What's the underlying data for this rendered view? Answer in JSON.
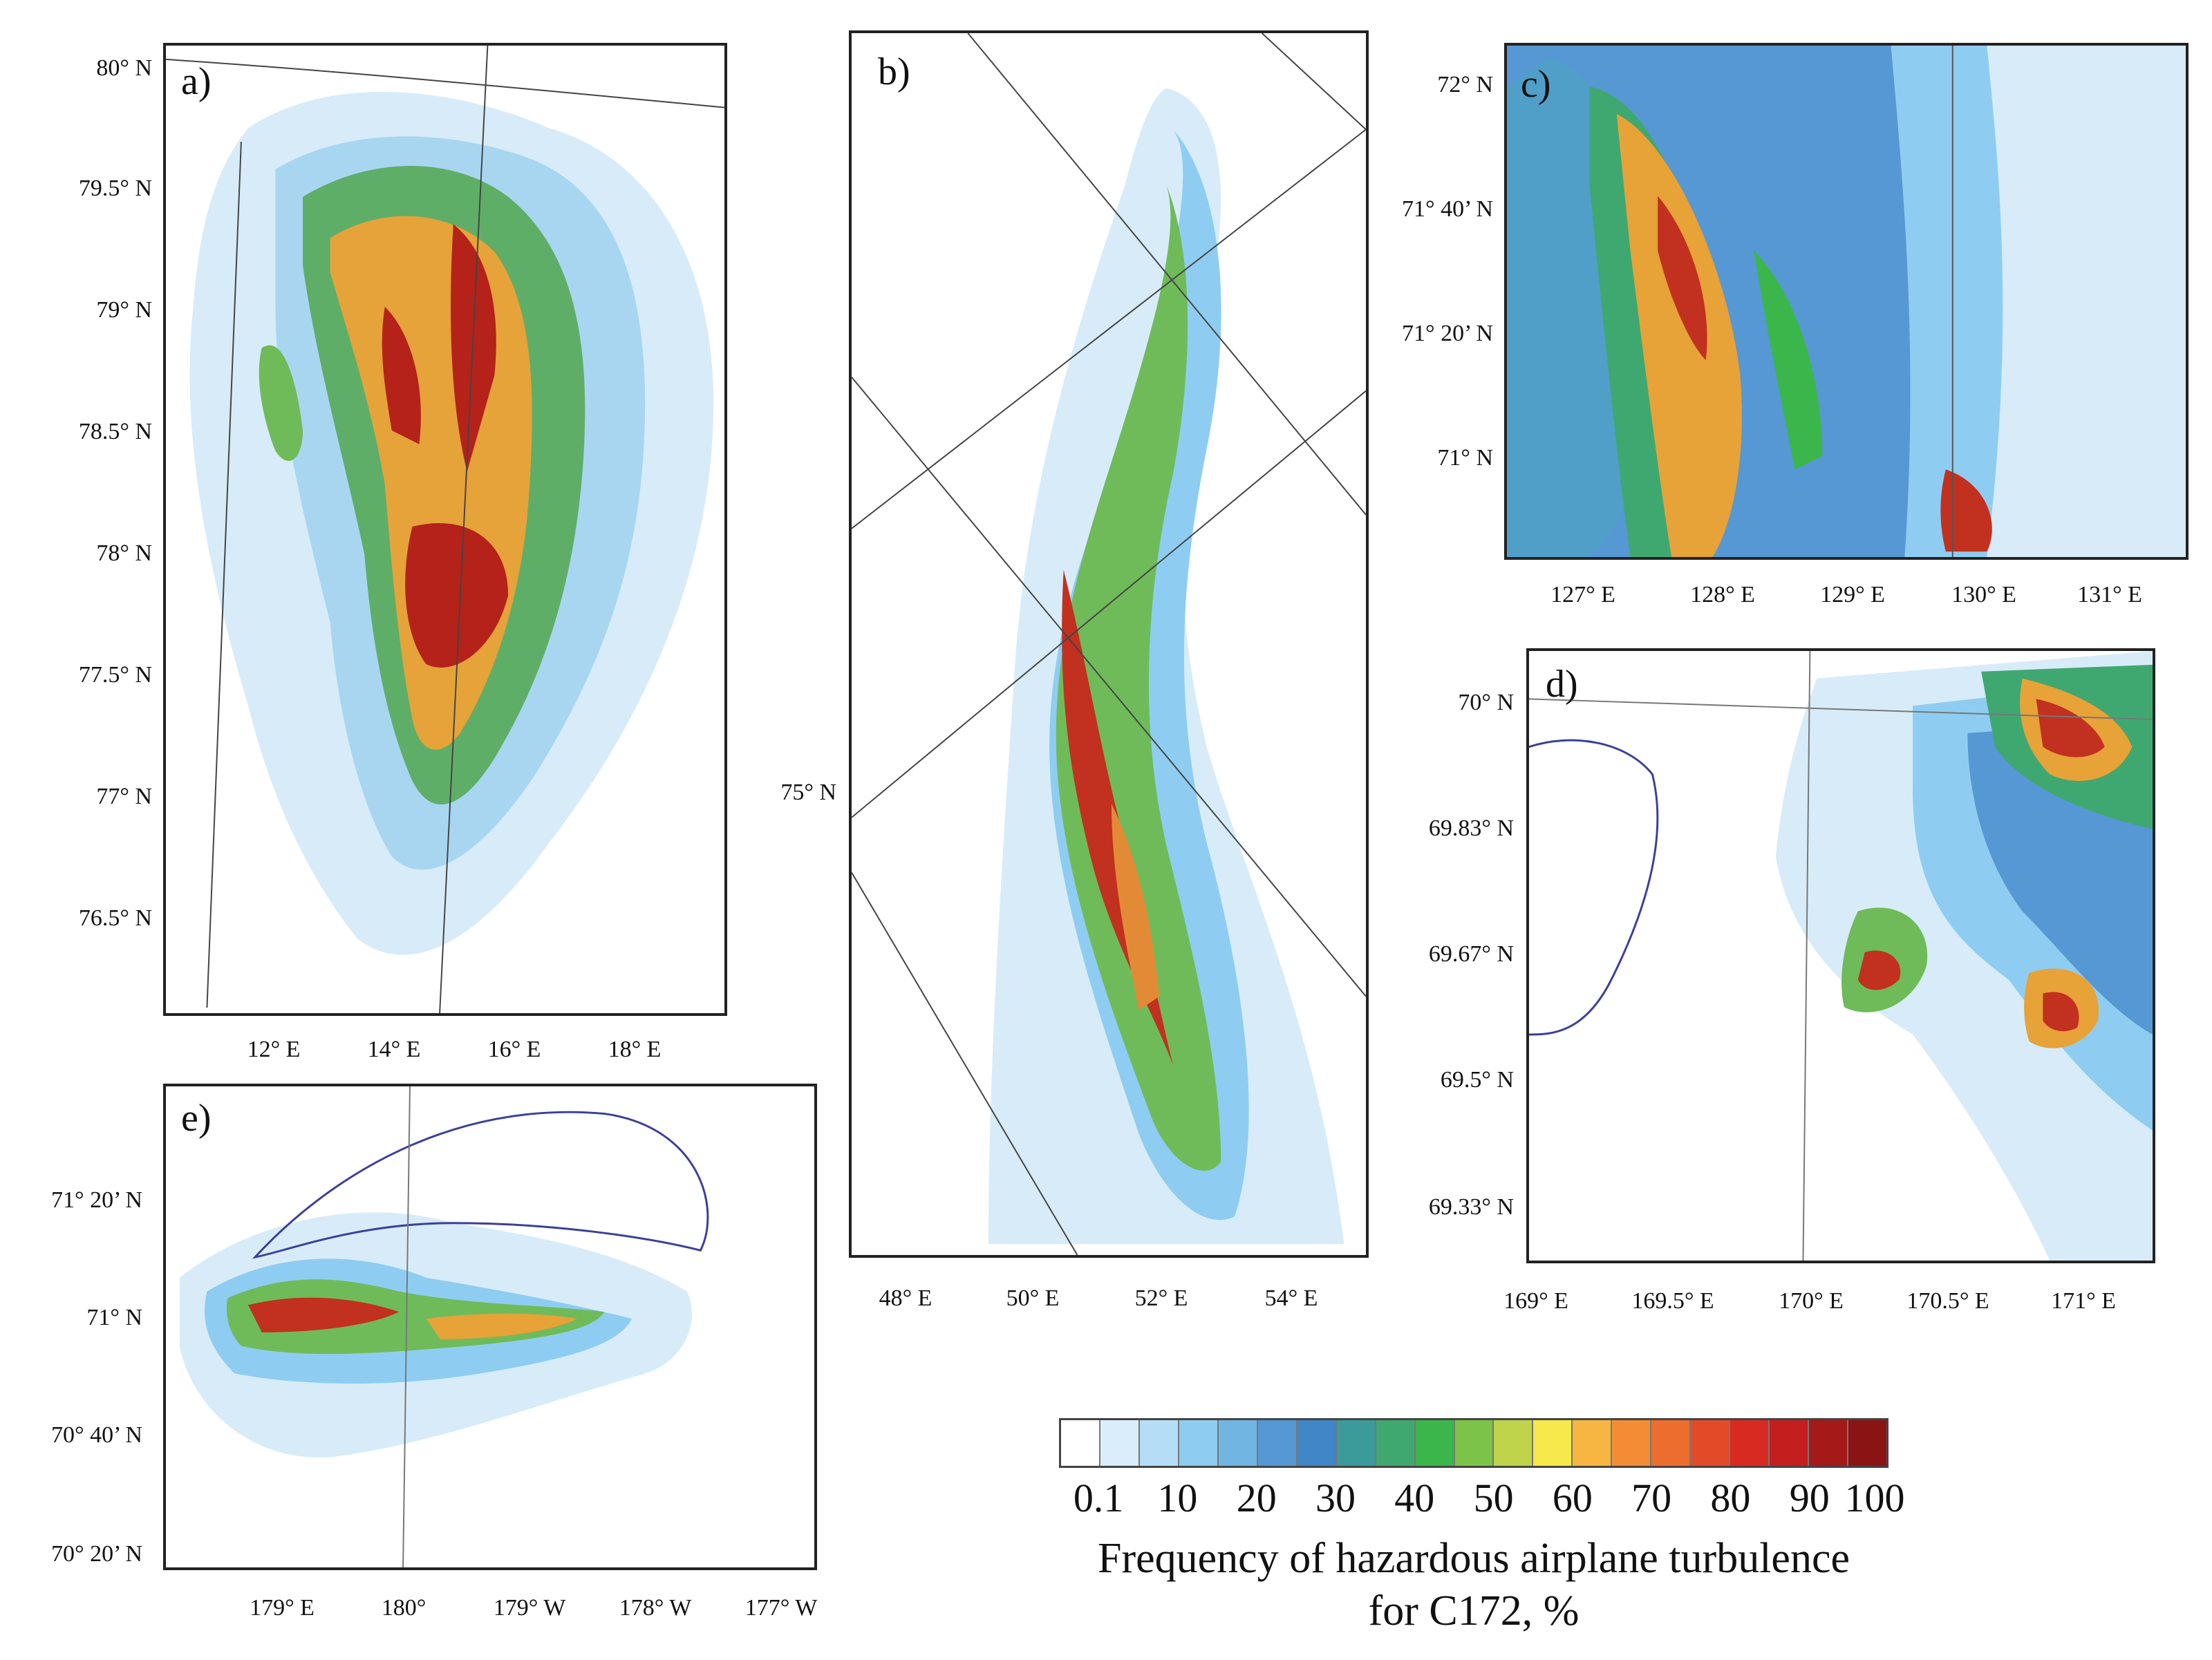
{
  "panels": {
    "a": {
      "label": "a)",
      "lat_labels": [
        "80° N",
        "79.5° N",
        "79° N",
        "78.5° N",
        "78° N",
        "77.5° N",
        "77° N",
        "76.5° N"
      ],
      "lon_labels": [
        "12° E",
        "14° E",
        "16° E",
        "18° E"
      ]
    },
    "b": {
      "label": "b)",
      "lat_labels": [
        "75° N"
      ],
      "lon_labels": [
        "48° E",
        "50° E",
        "52° E",
        "54° E"
      ]
    },
    "c": {
      "label": "c)",
      "lat_labels": [
        "72° N",
        "71° 40’ N",
        "71° 20’ N",
        "71° N"
      ],
      "lon_labels": [
        "127° E",
        "128° E",
        "129° E",
        "130° E",
        "131° E"
      ]
    },
    "d": {
      "label": "d)",
      "lat_labels": [
        "70° N",
        "69.83° N",
        "69.67° N",
        "69.5° N",
        "69.33° N"
      ],
      "lon_labels": [
        "169° E",
        "169.5° E",
        "170° E",
        "170.5° E",
        "171° E"
      ]
    },
    "e": {
      "label": "e)",
      "lat_labels": [
        "71° 20’ N",
        "71° N",
        "70° 40’ N",
        "70° 20’ N"
      ],
      "lon_labels": [
        "179° E",
        "180°",
        "179° W",
        "178° W",
        "177° W"
      ]
    }
  },
  "legend": {
    "colors": [
      "#ffffff",
      "#d9eefa",
      "#b5def6",
      "#8ecdf1",
      "#71b5e3",
      "#5598d4",
      "#3f87c6",
      "#3b9a9a",
      "#3fa871",
      "#3bb64a",
      "#7cc448",
      "#bfd44a",
      "#f7e84b",
      "#f7b641",
      "#f28d36",
      "#ec6d2d",
      "#e34b28",
      "#d92a22",
      "#c41e1e",
      "#a61919",
      "#8a1414"
    ],
    "tick_labels": [
      "0.1",
      "10",
      "20",
      "30",
      "40",
      "50",
      "60",
      "70",
      "80",
      "90",
      "100"
    ],
    "caption_line1": "Frequency of hazardous airplane turbulence",
    "caption_line2": "for C172, %"
  }
}
